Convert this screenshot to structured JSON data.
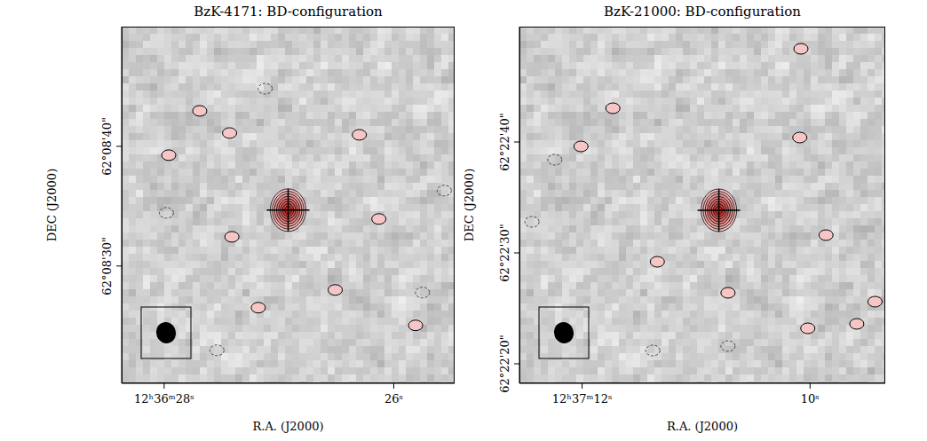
{
  "chart_data": [
    {
      "type": "contour_map",
      "title": "BzK-4171: BD-configuration",
      "x_label": "R.A. (J2000)",
      "y_label": "DEC (J2000)",
      "xlim": [
        28.37,
        25.47
      ],
      "xticks": [
        {
          "value": 28,
          "label": "12ʰ36ᵐ28ˢ"
        },
        {
          "value": 26,
          "label": "26ˢ"
        }
      ],
      "ylim": [
        20.2,
        50
      ],
      "yticks": [
        {
          "value": 30,
          "label": "62°08'30\""
        },
        {
          "value": 40,
          "label": "62°08'40\""
        }
      ],
      "source": {
        "x": 26.92,
        "y": 34.67,
        "contours": 8
      },
      "positive_contours": {
        "x": [
          27.96,
          27.43,
          27.69,
          26.13,
          27.18,
          26.51,
          27.41,
          26.3,
          25.81
        ],
        "y": [
          39.26,
          41.11,
          42.96,
          33.93,
          26.52,
          28.0,
          32.44,
          40.96,
          25.04
        ]
      },
      "negative_contours": {
        "x": [
          27.98,
          25.56,
          27.54,
          27.12,
          25.75
        ],
        "y": [
          34.44,
          36.3,
          22.96,
          44.81,
          27.78
        ]
      }
    },
    {
      "type": "contour_map",
      "title": "BzK-21000: BD-configuration",
      "x_label": "R.A. (J2000)",
      "y_label": "DEC (J2000)",
      "xlim": [
        12.55,
        9.34
      ],
      "xticks": [
        {
          "value": 12,
          "label": "12ʰ37ᵐ12ˢ"
        },
        {
          "value": 10,
          "label": "10ˢ"
        }
      ],
      "ylim": [
        18.24,
        50.4
      ],
      "yticks": [
        {
          "value": 20,
          "label": "62°22'20\""
        },
        {
          "value": 30,
          "label": "62°22'30\""
        },
        {
          "value": 40,
          "label": "62°22'40\""
        }
      ],
      "source": {
        "x": 10.8,
        "y": 33.84,
        "contours": 8
      },
      "positive_contours": {
        "x": [
          12.01,
          11.73,
          10.09,
          9.86,
          10.72,
          11.34,
          10.02,
          9.59,
          9.43,
          10.08
        ],
        "y": [
          39.6,
          43.04,
          40.4,
          31.6,
          26.4,
          29.2,
          23.2,
          23.6,
          25.6,
          48.4
        ]
      },
      "negative_contours": {
        "x": [
          12.44,
          12.24,
          10.72,
          11.38
        ],
        "y": [
          32.8,
          38.4,
          21.6,
          21.2
        ]
      }
    }
  ]
}
